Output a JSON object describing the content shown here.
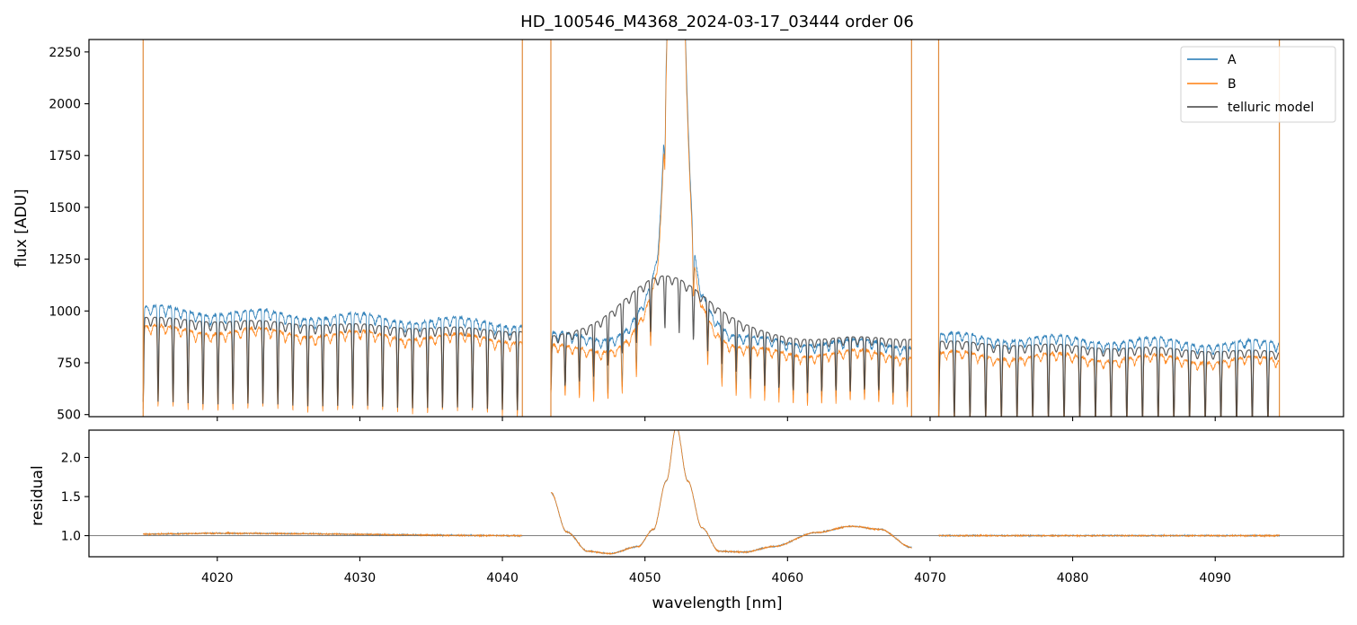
{
  "chart_data": [
    {
      "type": "line",
      "title": "HD_100546_M4368_2024-03-17_03444  order 06",
      "xlabel": "",
      "ylabel": "flux [ADU]",
      "xlim": [
        4011,
        4099
      ],
      "ylim": [
        490,
        2310
      ],
      "xticks": [
        4020,
        4030,
        4040,
        4050,
        4060,
        4070,
        4080,
        4090
      ],
      "yticks": [
        500,
        750,
        1000,
        1250,
        1500,
        1750,
        2000,
        2250
      ],
      "ytick_labels": [
        "500",
        "750",
        "1000",
        "1250",
        "1500",
        "1750",
        "2000",
        "2250"
      ],
      "legend_position": "top-right",
      "series": [
        {
          "name": "A",
          "color": "#1f77b4"
        },
        {
          "name": "B",
          "color": "#ff7f0e"
        },
        {
          "name": "telluric model",
          "color": "#404040"
        }
      ],
      "segments": [
        {
          "x": [
            4014.8,
            4041.4
          ],
          "continuum": {
            "A": [
              1010,
              940
            ],
            "B": [
              915,
              865
            ],
            "telluric model": [
              965,
              905
            ]
          },
          "line_spacing": 1.05,
          "depth": 0.42
        },
        {
          "x": [
            4043.4,
            4068.7
          ],
          "continuum": {
            "A": [
              880,
              840
            ],
            "B": [
              820,
              790
            ],
            "telluric model": [
              860,
              870
            ]
          },
          "line_spacing": 1.0,
          "depth": 0.3,
          "emission_peak": {
            "center": 4052.2,
            "A": 2320,
            "B": 2320
          }
        },
        {
          "x": [
            4070.6,
            4094.5
          ],
          "continuum": {
            "A": [
              880,
              840
            ],
            "B": [
              790,
              760
            ],
            "telluric model": [
              850,
              800
            ]
          },
          "line_spacing": 1.1,
          "depth": 0.44
        }
      ],
      "edge_spikes_x": [
        4014.8,
        4041.4,
        4043.4,
        4068.7,
        4070.6,
        4094.5
      ]
    },
    {
      "type": "line",
      "title": "",
      "xlabel": "wavelength [nm]",
      "ylabel": "residual",
      "xlim": [
        4011,
        4099
      ],
      "ylim": [
        0.73,
        2.35
      ],
      "xticks": [
        4020,
        4030,
        4040,
        4050,
        4060,
        4070,
        4080,
        4090
      ],
      "xtick_labels": [
        "4020",
        "4030",
        "4040",
        "4050",
        "4060",
        "4070",
        "4080",
        "4090"
      ],
      "yticks": [
        1.0,
        1.5,
        2.0
      ],
      "ytick_labels": [
        "1.0",
        "1.5",
        "2.0"
      ],
      "reference_line": 1.0,
      "series": [
        {
          "name": "A",
          "color": "#1f77b4"
        },
        {
          "name": "B",
          "color": "#ff7f0e"
        }
      ],
      "residual_profile": [
        [
          4014.8,
          1.02
        ],
        [
          4020,
          1.03
        ],
        [
          4041.4,
          1.0
        ],
        [
          4043.4,
          1.55
        ],
        [
          4044.5,
          1.05
        ],
        [
          4046,
          0.8
        ],
        [
          4047.5,
          0.77
        ],
        [
          4049.5,
          0.86
        ],
        [
          4050.6,
          1.08
        ],
        [
          4051.5,
          1.7
        ],
        [
          4052.2,
          2.4
        ],
        [
          4053,
          1.7
        ],
        [
          4054,
          1.1
        ],
        [
          4055.2,
          0.8
        ],
        [
          4057,
          0.79
        ],
        [
          4059,
          0.86
        ],
        [
          4062,
          1.04
        ],
        [
          4064.5,
          1.12
        ],
        [
          4066.5,
          1.08
        ],
        [
          4068.7,
          0.85
        ],
        [
          4070.6,
          1.0
        ],
        [
          4094.5,
          1.0
        ]
      ]
    }
  ]
}
